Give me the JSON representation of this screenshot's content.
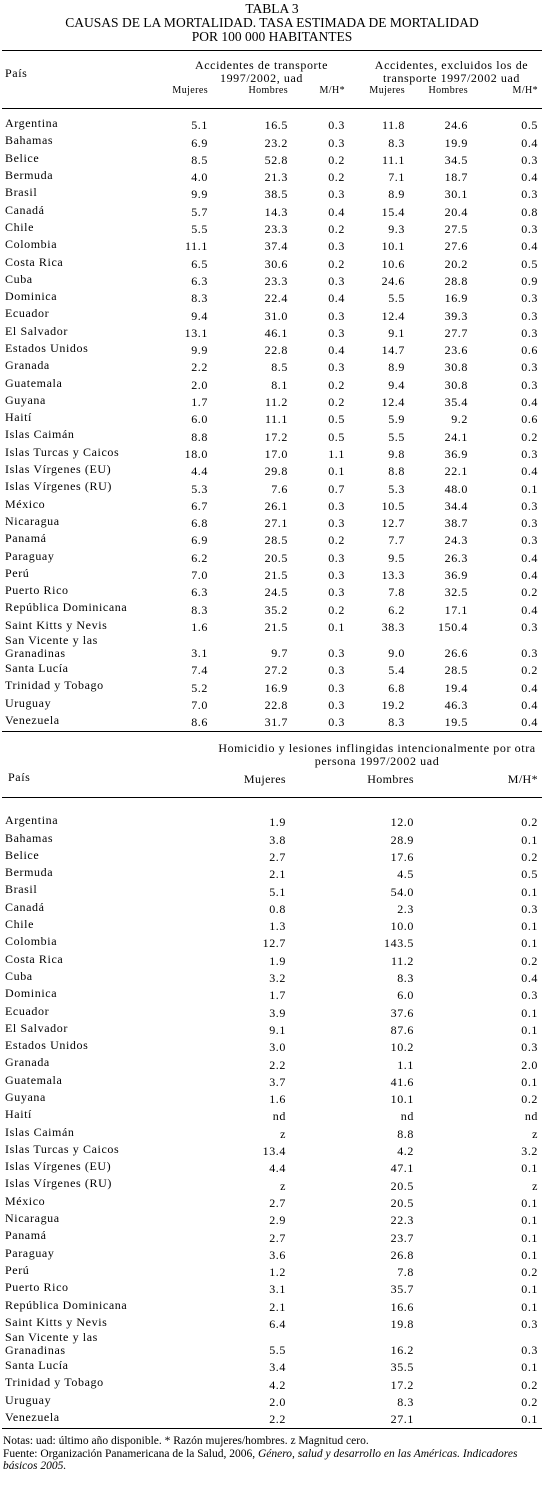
{
  "title": "TABLA 3",
  "subtitle_lines": [
    "CAUSAS DE LA MORTALIDAD. TASA ESTIMADA DE MORTALIDAD",
    "POR 100 000 HABITANTES"
  ],
  "table1": {
    "country_header": "País",
    "groups": [
      "Accidentes de transporte 1997/2002, uad",
      "Accidentes, excluidos los de transporte 1997/2002 uad"
    ],
    "subheaders": [
      "Mujeres",
      "Hombres",
      "M/H*",
      "Mujeres",
      "Hombres",
      "M/H*"
    ],
    "rows": [
      [
        "Argentina",
        "5.1",
        "16.5",
        "0.3",
        "11.8",
        "24.6",
        "0.5"
      ],
      [
        "Bahamas",
        "6.9",
        "23.2",
        "0.3",
        "8.3",
        "19.9",
        "0.4"
      ],
      [
        "Belice",
        "8.5",
        "52.8",
        "0.2",
        "11.1",
        "34.5",
        "0.3"
      ],
      [
        "Bermuda",
        "4.0",
        "21.3",
        "0.2",
        "7.1",
        "18.7",
        "0.4"
      ],
      [
        "Brasil",
        "9.9",
        "38.5",
        "0.3",
        "8.9",
        "30.1",
        "0.3"
      ],
      [
        "Canadá",
        "5.7",
        "14.3",
        "0.4",
        "15.4",
        "20.4",
        "0.8"
      ],
      [
        "Chile",
        "5.5",
        "23.3",
        "0.2",
        "9.3",
        "27.5",
        "0.3"
      ],
      [
        "Colombia",
        "11.1",
        "37.4",
        "0.3",
        "10.1",
        "27.6",
        "0.4"
      ],
      [
        "Costa Rica",
        "6.5",
        "30.6",
        "0.2",
        "10.6",
        "20.2",
        "0.5"
      ],
      [
        "Cuba",
        "6.3",
        "23.3",
        "0.3",
        "24.6",
        "28.8",
        "0.9"
      ],
      [
        "Dominica",
        "8.3",
        "22.4",
        "0.4",
        "5.5",
        "16.9",
        "0.3"
      ],
      [
        "Ecuador",
        "9.4",
        "31.0",
        "0.3",
        "12.4",
        "39.3",
        "0.3"
      ],
      [
        "El Salvador",
        "13.1",
        "46.1",
        "0.3",
        "9.1",
        "27.7",
        "0.3"
      ],
      [
        "Estados Unidos",
        "9.9",
        "22.8",
        "0.4",
        "14.7",
        "23.6",
        "0.6"
      ],
      [
        "Granada",
        "2.2",
        "8.5",
        "0.3",
        "8.9",
        "30.8",
        "0.3"
      ],
      [
        "Guatemala",
        "2.0",
        "8.1",
        "0.2",
        "9.4",
        "30.8",
        "0.3"
      ],
      [
        "Guyana",
        "1.7",
        "11.2",
        "0.2",
        "12.4",
        "35.4",
        "0.4"
      ],
      [
        "Haití",
        "6.0",
        "11.1",
        "0.5",
        "5.9",
        "9.2",
        "0.6"
      ],
      [
        "Islas Caimán",
        "8.8",
        "17.2",
        "0.5",
        "5.5",
        "24.1",
        "0.2"
      ],
      [
        "Islas Turcas y Caicos",
        "18.0",
        "17.0",
        "1.1",
        "9.8",
        "36.9",
        "0.3"
      ],
      [
        "Islas Vírgenes (EU)",
        "4.4",
        "29.8",
        "0.1",
        "8.8",
        "22.1",
        "0.4"
      ],
      [
        "Islas Vírgenes  (RU)",
        "5.3",
        "7.6",
        "0.7",
        "5.3",
        "48.0",
        "0.1"
      ],
      [
        "México",
        "6.7",
        "26.1",
        "0.3",
        "10.5",
        "34.4",
        "0.3"
      ],
      [
        "Nicaragua",
        "6.8",
        "27.1",
        "0.3",
        "12.7",
        "38.7",
        "0.3"
      ],
      [
        "Panamá",
        "6.9",
        "28.5",
        "0.2",
        "7.7",
        "24.3",
        "0.3"
      ],
      [
        "Paraguay",
        "6.2",
        "20.5",
        "0.3",
        "9.5",
        "26.3",
        "0.4"
      ],
      [
        "Perú",
        "7.0",
        "21.5",
        "0.3",
        "13.3",
        "36.9",
        "0.4"
      ],
      [
        "Puerto Rico",
        "6.3",
        "24.5",
        "0.3",
        "7.8",
        "32.5",
        "0.2"
      ],
      [
        "República Dominicana",
        "8.3",
        "35.2",
        "0.2",
        "6.2",
        "17.1",
        "0.4"
      ],
      [
        "Saint Kitts y Nevis",
        "1.6",
        "21.5",
        "0.1",
        "38.3",
        "150.4",
        "0.3"
      ],
      [
        "San Vicente y las Granadinas",
        "3.1",
        "9.7",
        "0.3",
        "9.0",
        "26.6",
        "0.3"
      ],
      [
        "Santa Lucía",
        "7.4",
        "27.2",
        "0.3",
        "5.4",
        "28.5",
        "0.2"
      ],
      [
        "Trinidad y Tobago",
        "5.2",
        "16.9",
        "0.3",
        "6.8",
        "19.4",
        "0.4"
      ],
      [
        "Uruguay",
        "7.0",
        "22.8",
        "0.3",
        "19.2",
        "46.3",
        "0.4"
      ],
      [
        "Venezuela",
        "8.6",
        "31.7",
        "0.3",
        "8.3",
        "19.5",
        "0.4"
      ]
    ]
  },
  "table2": {
    "country_header": "País",
    "groups": [
      "Homicidio y lesiones inflingidas intencionalmente por otra persona 1997/2002 uad"
    ],
    "subheaders": [
      "Mujeres",
      "Hombres",
      "M/H*"
    ],
    "rows": [
      [
        "Argentina",
        "1.9",
        "12.0",
        "0.2"
      ],
      [
        "Bahamas",
        "3.8",
        "28.9",
        "0.1"
      ],
      [
        "Belice",
        "2.7",
        "17.6",
        "0.2"
      ],
      [
        "Bermuda",
        "2.1",
        "4.5",
        "0.5"
      ],
      [
        "Brasil",
        "5.1",
        "54.0",
        "0.1"
      ],
      [
        "Canadá",
        "0.8",
        "2.3",
        "0.3"
      ],
      [
        "Chile",
        "1.3",
        "10.0",
        "0.1"
      ],
      [
        "Colombia",
        "12.7",
        "143.5",
        "0.1"
      ],
      [
        "Costa Rica",
        "1.9",
        "11.2",
        "0.2"
      ],
      [
        "Cuba",
        "3.2",
        "8.3",
        "0.4"
      ],
      [
        "Dominica",
        "1.7",
        "6.0",
        "0.3"
      ],
      [
        "Ecuador",
        "3.9",
        "37.6",
        "0.1"
      ],
      [
        "El Salvador",
        "9.1",
        "87.6",
        "0.1"
      ],
      [
        "Estados Unidos",
        "3.0",
        "10.2",
        "0.3"
      ],
      [
        "Granada",
        "2.2",
        "1.1",
        "2.0"
      ],
      [
        "Guatemala",
        "3.7",
        "41.6",
        "0.1"
      ],
      [
        "Guyana",
        "1.6",
        "10.1",
        "0.2"
      ],
      [
        "Haití",
        "nd",
        "nd",
        "nd"
      ],
      [
        "Islas Caimán",
        "z",
        "8.8",
        "z"
      ],
      [
        "Islas Turcas y Caicos",
        "13.4",
        "4.2",
        "3.2"
      ],
      [
        "Islas Vírgenes (EU)",
        "4.4",
        "47.1",
        "0.1"
      ],
      [
        "Islas Vírgenes  (RU)",
        "z",
        "20.5",
        "z"
      ],
      [
        "México",
        "2.7",
        "20.5",
        "0.1"
      ],
      [
        "Nicaragua",
        "2.9",
        "22.3",
        "0.1"
      ],
      [
        "Panamá",
        "2.7",
        "23.7",
        "0.1"
      ],
      [
        "Paraguay",
        "3.6",
        "26.8",
        "0.1"
      ],
      [
        "Perú",
        "1.2",
        "7.8",
        "0.2"
      ],
      [
        "Puerto Rico",
        "3.1",
        "35.7",
        "0.1"
      ],
      [
        "República Dominicana",
        "2.1",
        "16.6",
        "0.1"
      ],
      [
        "Saint Kitts y Nevis",
        "6.4",
        "19.8",
        "0.3"
      ],
      [
        "San Vicente y las Granadinas",
        "5.5",
        "16.2",
        "0.3"
      ],
      [
        "Santa Lucía",
        "3.4",
        "35.5",
        "0.1"
      ],
      [
        "Trinidad y Tobago",
        "4.2",
        "17.2",
        "0.2"
      ],
      [
        "Uruguay",
        "2.0",
        "8.3",
        "0.2"
      ],
      [
        "Venezuela",
        "2.2",
        "27.1",
        "0.1"
      ]
    ]
  },
  "notes": "Notas:  uad: último año disponible.   * Razón mujeres/hombres.   z Magnitud cero.",
  "source_prefix": "Fuente: Organización Panamericana de la Salud, 2006, ",
  "source_italic": "Género, salud y desarrollo en las Américas. Indicadores básicos 2005."
}
